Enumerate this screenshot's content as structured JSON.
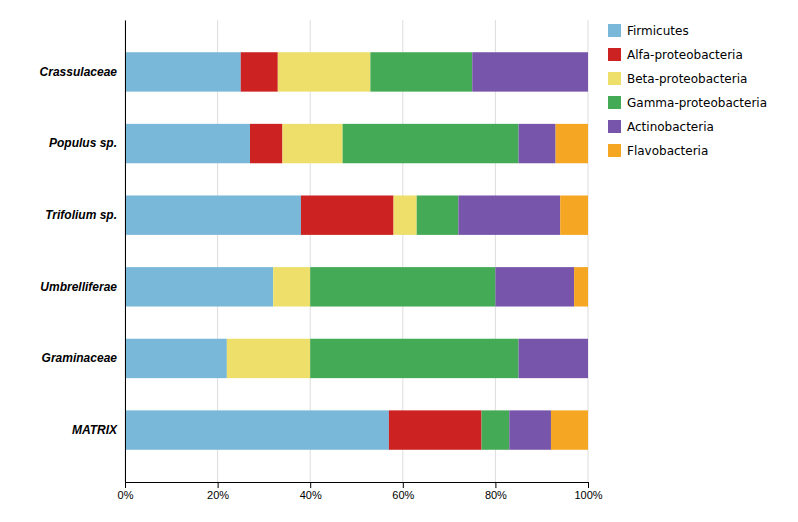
{
  "chart_data": {
    "type": "bar",
    "orientation": "horizontal",
    "stacked": true,
    "categories": [
      "Crassulaceae",
      "Populus sp.",
      "Trifolium sp.",
      "Umbrelliferae",
      "Graminaceae",
      "MATRIX"
    ],
    "series": [
      {
        "name": "Firmicutes",
        "color": "#7ab8d9",
        "values": [
          25,
          27,
          38,
          32,
          22,
          57
        ]
      },
      {
        "name": "Alfa-proteobacteria",
        "color": "#cc2222",
        "values": [
          8,
          7,
          20,
          0,
          0,
          20
        ]
      },
      {
        "name": "Beta-proteobacteria",
        "color": "#eedf6b",
        "values": [
          20,
          13,
          5,
          8,
          18,
          0
        ]
      },
      {
        "name": "Gamma-proteobacteria",
        "color": "#44aa55",
        "values": [
          22,
          38,
          9,
          40,
          45,
          6
        ]
      },
      {
        "name": "Actinobacteria",
        "color": "#7755aa",
        "values": [
          25,
          8,
          22,
          17,
          15,
          9
        ]
      },
      {
        "name": "Flavobacteria",
        "color": "#f5a623",
        "values": [
          0,
          7,
          6,
          3,
          0,
          8
        ]
      }
    ],
    "xlim": [
      0,
      100
    ],
    "xticks": [
      {
        "value": 0,
        "label": "0%"
      },
      {
        "value": 20,
        "label": "20%"
      },
      {
        "value": 40,
        "label": "40%"
      },
      {
        "value": 60,
        "label": "60%"
      },
      {
        "value": 80,
        "label": "80%"
      },
      {
        "value": 100,
        "label": "100%"
      }
    ],
    "grid": true,
    "legend": "right"
  }
}
